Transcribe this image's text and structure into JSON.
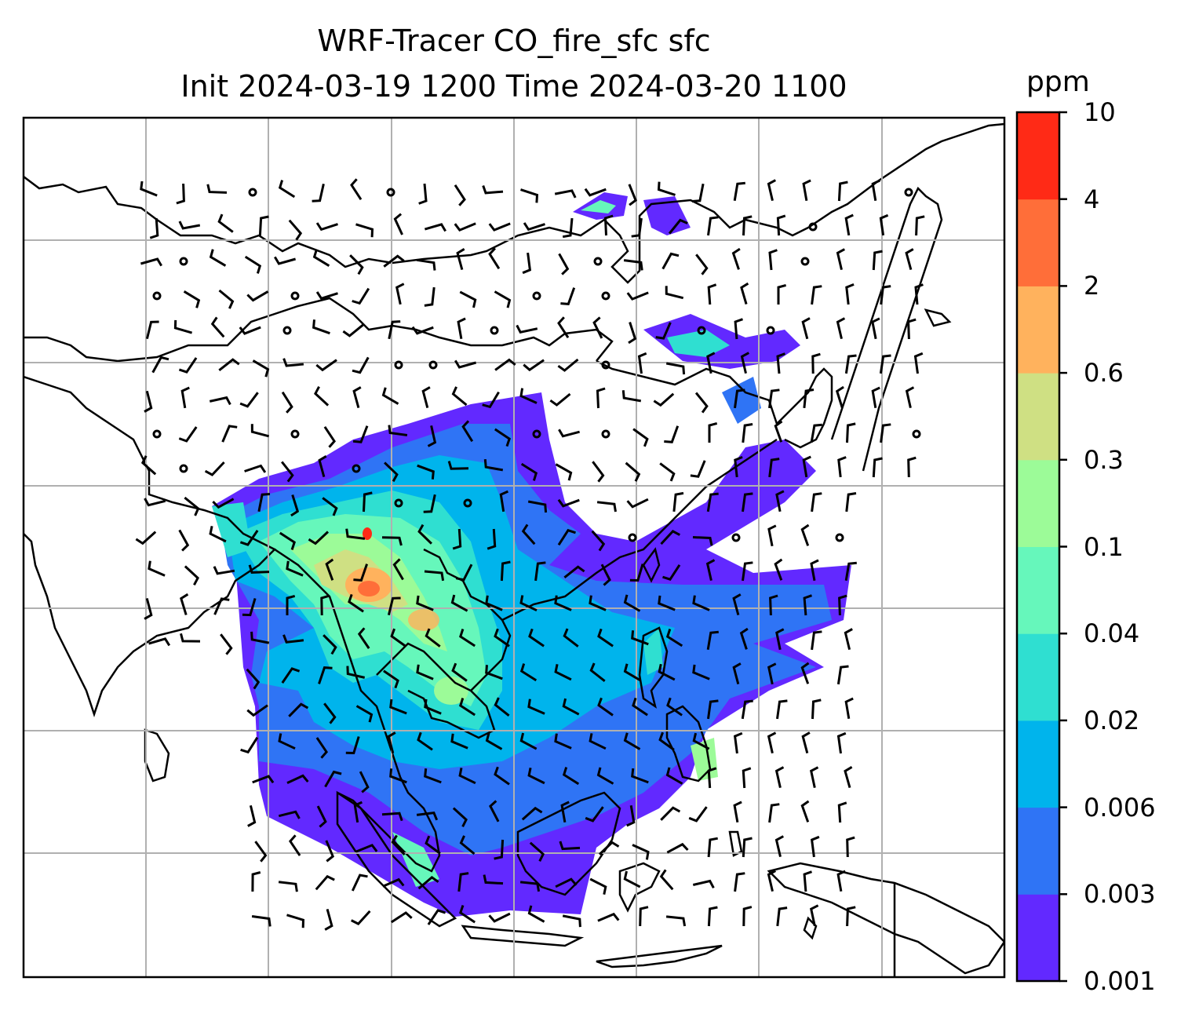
{
  "title": {
    "line1": "WRF-Tracer CO_fire_sfc sfc",
    "line2": "Init 2024-03-19 1200 Time 2024-03-20 1100"
  },
  "colorbar": {
    "units": "ppm",
    "levels": [
      "0.001",
      "0.003",
      "0.006",
      "0.02",
      "0.04",
      "0.1",
      "0.3",
      "0.6",
      "2",
      "4",
      "10"
    ],
    "colors": [
      "#6229ff",
      "#2f74f5",
      "#00b4ec",
      "#2fdfd1",
      "#66f7bb",
      "#9cfb98",
      "#cfe083",
      "#ffb25d",
      "#ff6e39",
      "#ff2a16"
    ]
  },
  "map": {
    "variable": "CO_fire_sfc",
    "land_outline_color": "#000000",
    "gridline_color": "#b0b0b0",
    "wind_barbs": "black"
  }
}
